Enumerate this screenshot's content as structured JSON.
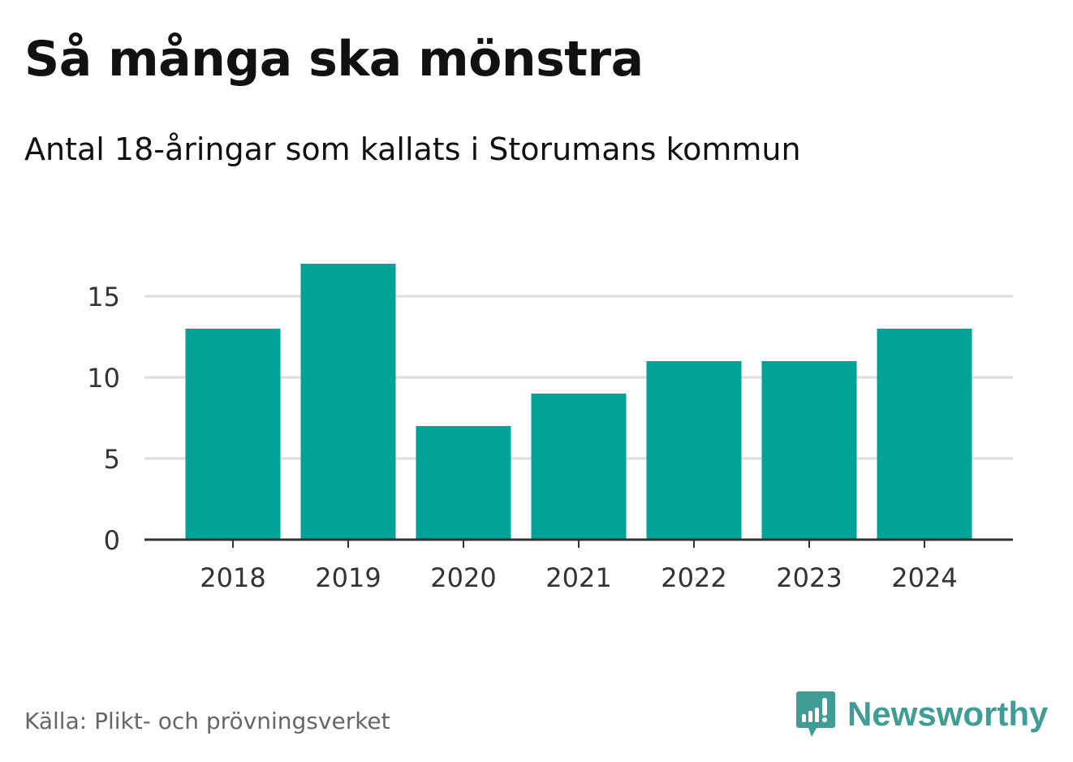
{
  "title": "Så många ska mönstra",
  "subtitle": "Antal 18-åringar som kallats i Storumans kommun",
  "source": "Källa: Plikt- och prövningsverket",
  "logo": "Newsworthy",
  "colors": {
    "bar": "#00a398",
    "grid": "#dddddd",
    "axis": "#333333",
    "logo": "#3f9d96"
  },
  "chart_data": {
    "type": "bar",
    "title": "Så många ska mönstra",
    "subtitle": "Antal 18-åringar som kallats i Storumans kommun",
    "xlabel": "",
    "ylabel": "",
    "categories": [
      "2018",
      "2019",
      "2020",
      "2021",
      "2022",
      "2023",
      "2024"
    ],
    "values": [
      13,
      17,
      7,
      9,
      11,
      11,
      13
    ],
    "yticks": [
      0,
      5,
      10,
      15
    ],
    "ylim": [
      0,
      17
    ],
    "grid": true
  }
}
